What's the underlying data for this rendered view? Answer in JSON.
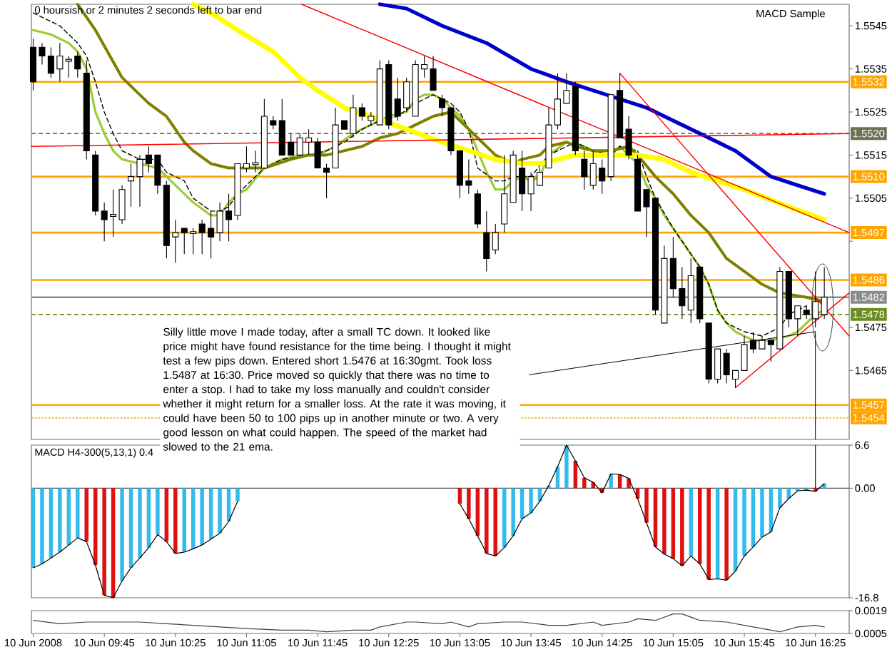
{
  "chart_data": [
    {
      "type": "candlestick",
      "x": [
        "2008-06-10T09:05",
        "2008-06-10T09:10",
        "2008-06-10T09:15",
        "2008-06-10T09:20",
        "2008-06-10T09:25",
        "2008-06-10T09:30",
        "2008-06-10T09:35",
        "2008-06-10T09:40",
        "2008-06-10T09:45",
        "2008-06-10T09:50",
        "2008-06-10T09:55",
        "2008-06-10T10:00",
        "2008-06-10T10:05",
        "2008-06-10T10:10",
        "2008-06-10T10:15",
        "2008-06-10T10:20",
        "2008-06-10T10:25",
        "2008-06-10T10:30",
        "2008-06-10T10:35",
        "2008-06-10T10:40",
        "2008-06-10T10:45",
        "2008-06-10T10:50",
        "2008-06-10T10:55",
        "2008-06-10T11:00",
        "2008-06-10T11:05",
        "2008-06-10T11:10",
        "2008-06-10T11:15",
        "2008-06-10T11:20",
        "2008-06-10T11:25",
        "2008-06-10T11:30",
        "2008-06-10T11:35",
        "2008-06-10T11:40",
        "2008-06-10T11:45",
        "2008-06-10T11:50",
        "2008-06-10T11:55",
        "2008-06-10T12:00",
        "2008-06-10T12:05",
        "2008-06-10T12:10",
        "2008-06-10T12:15",
        "2008-06-10T12:20",
        "2008-06-10T12:25",
        "2008-06-10T12:30",
        "2008-06-10T12:35",
        "2008-06-10T12:40",
        "2008-06-10T12:45",
        "2008-06-10T12:50",
        "2008-06-10T12:55",
        "2008-06-10T13:00",
        "2008-06-10T13:05",
        "2008-06-10T13:10",
        "2008-06-10T13:15",
        "2008-06-10T13:20",
        "2008-06-10T13:25",
        "2008-06-10T13:30",
        "2008-06-10T13:35",
        "2008-06-10T13:40",
        "2008-06-10T13:45",
        "2008-06-10T13:50",
        "2008-06-10T13:55",
        "2008-06-10T14:00",
        "2008-06-10T14:05",
        "2008-06-10T14:10",
        "2008-06-10T14:15",
        "2008-06-10T14:20",
        "2008-06-10T14:25",
        "2008-06-10T14:30",
        "2008-06-10T14:35",
        "2008-06-10T14:40",
        "2008-06-10T14:45",
        "2008-06-10T14:50",
        "2008-06-10T14:55",
        "2008-06-10T15:00",
        "2008-06-10T15:05",
        "2008-06-10T15:10",
        "2008-06-10T15:15",
        "2008-06-10T15:20",
        "2008-06-10T15:25",
        "2008-06-10T15:30",
        "2008-06-10T15:35",
        "2008-06-10T15:40",
        "2008-06-10T15:45",
        "2008-06-10T15:50",
        "2008-06-10T15:55",
        "2008-06-10T16:00",
        "2008-06-10T16:05",
        "2008-06-10T16:10",
        "2008-06-10T16:15",
        "2008-06-10T16:20",
        "2008-06-10T16:25",
        "2008-06-10T16:30"
      ],
      "ohlc": [
        [
          1.554,
          1.5542,
          1.553,
          1.5532
        ],
        [
          1.554,
          1.5541,
          1.5536,
          1.5538
        ],
        [
          1.5538,
          1.554,
          1.5533,
          1.5534
        ],
        [
          1.5535,
          1.5541,
          1.5532,
          1.5538
        ],
        [
          1.5537,
          1.5538,
          1.5533,
          1.5537
        ],
        [
          1.5538,
          1.5539,
          1.5533,
          1.5535
        ],
        [
          1.5534,
          1.5537,
          1.5514,
          1.5516
        ],
        [
          1.5515,
          1.5516,
          1.5501,
          1.5502
        ],
        [
          1.5502,
          1.5504,
          1.5495,
          1.55
        ],
        [
          1.5501,
          1.5507,
          1.5496,
          1.5501
        ],
        [
          1.55,
          1.5508,
          1.5499,
          1.5507
        ],
        [
          1.5509,
          1.5513,
          1.5503,
          1.551
        ],
        [
          1.551,
          1.5515,
          1.5503,
          1.5514
        ],
        [
          1.5515,
          1.5517,
          1.5511,
          1.5513
        ],
        [
          1.5515,
          1.5515,
          1.5506,
          1.5508
        ],
        [
          1.5508,
          1.5509,
          1.5491,
          1.5494
        ],
        [
          1.5496,
          1.55,
          1.549,
          1.5497
        ],
        [
          1.5498,
          1.5498,
          1.5492,
          1.5497
        ],
        [
          1.5497,
          1.5498,
          1.5492,
          1.5497
        ],
        [
          1.5499,
          1.55,
          1.5492,
          1.5497
        ],
        [
          1.5498,
          1.5502,
          1.5491,
          1.5496
        ],
        [
          1.5497,
          1.5504,
          1.5495,
          1.5502
        ],
        [
          1.5502,
          1.5506,
          1.5495,
          1.55
        ],
        [
          1.5501,
          1.5513,
          1.55,
          1.5513
        ],
        [
          1.5512,
          1.5517,
          1.5511,
          1.5513
        ],
        [
          1.5513,
          1.5516,
          1.5511,
          1.5513
        ],
        [
          1.5512,
          1.5528,
          1.5512,
          1.5524
        ],
        [
          1.5523,
          1.5524,
          1.5521,
          1.5522
        ],
        [
          1.5523,
          1.5528,
          1.5515,
          1.5515
        ],
        [
          1.5518,
          1.552,
          1.5515,
          1.5515
        ],
        [
          1.5515,
          1.552,
          1.5515,
          1.5519
        ],
        [
          1.5518,
          1.5521,
          1.5515,
          1.5519
        ],
        [
          1.5518,
          1.5519,
          1.5512,
          1.5512
        ],
        [
          1.5512,
          1.5513,
          1.5505,
          1.5511
        ],
        [
          1.5512,
          1.5526,
          1.5512,
          1.5522
        ],
        [
          1.5523,
          1.5523,
          1.5521,
          1.5521
        ],
        [
          1.552,
          1.5529,
          1.5519,
          1.5526
        ],
        [
          1.5526,
          1.5527,
          1.5523,
          1.5524
        ],
        [
          1.5523,
          1.5525,
          1.5522,
          1.5524
        ],
        [
          1.5522,
          1.5537,
          1.5522,
          1.5535
        ],
        [
          1.5536,
          1.5537,
          1.5521,
          1.5522
        ],
        [
          1.5528,
          1.5533,
          1.5523,
          1.5524
        ],
        [
          1.5526,
          1.5533,
          1.5525,
          1.5532
        ],
        [
          1.5524,
          1.5537,
          1.5524,
          1.5536
        ],
        [
          1.5535,
          1.5538,
          1.5533,
          1.5536
        ],
        [
          1.5535,
          1.5538,
          1.553,
          1.553
        ],
        [
          1.5528,
          1.5529,
          1.5524,
          1.5526
        ],
        [
          1.5526,
          1.5526,
          1.5515,
          1.5516
        ],
        [
          1.5516,
          1.5516,
          1.5505,
          1.5508
        ],
        [
          1.5509,
          1.5514,
          1.5506,
          1.5508
        ],
        [
          1.5506,
          1.5507,
          1.5498,
          1.5499
        ],
        [
          1.5497,
          1.5502,
          1.5488,
          1.5491
        ],
        [
          1.5493,
          1.5499,
          1.5492,
          1.5497
        ],
        [
          1.5499,
          1.5515,
          1.5497,
          1.5506
        ],
        [
          1.5504,
          1.5516,
          1.5504,
          1.5515
        ],
        [
          1.5512,
          1.5516,
          1.5502,
          1.5506
        ],
        [
          1.5506,
          1.5511,
          1.5502,
          1.551
        ],
        [
          1.5508,
          1.5512,
          1.5508,
          1.5511
        ],
        [
          1.5512,
          1.5526,
          1.5512,
          1.5522
        ],
        [
          1.5522,
          1.5534,
          1.5521,
          1.5528
        ],
        [
          1.5527,
          1.5534,
          1.5527,
          1.553
        ],
        [
          1.5531,
          1.5532,
          1.5515,
          1.5516
        ],
        [
          1.5514,
          1.5516,
          1.5507,
          1.551
        ],
        [
          1.5508,
          1.5516,
          1.5507,
          1.5513
        ],
        [
          1.5512,
          1.5514,
          1.5506,
          1.5509
        ],
        [
          1.551,
          1.5529,
          1.5509,
          1.5529
        ],
        [
          1.553,
          1.5534,
          1.5519,
          1.5519
        ],
        [
          1.5521,
          1.5524,
          1.5514,
          1.5515
        ],
        [
          1.5514,
          1.5515,
          1.5502,
          1.5502
        ],
        [
          1.5507,
          1.5507,
          1.5496,
          1.5503
        ],
        [
          1.5505,
          1.5505,
          1.5478,
          1.5479
        ],
        [
          1.5476,
          1.5494,
          1.5476,
          1.5491
        ],
        [
          1.5491,
          1.5496,
          1.5482,
          1.5484
        ],
        [
          1.5484,
          1.5489,
          1.5477,
          1.548
        ],
        [
          1.5479,
          1.5491,
          1.5476,
          1.5487
        ],
        [
          1.5489,
          1.5489,
          1.5476,
          1.5477
        ],
        [
          1.5476,
          1.5476,
          1.5462,
          1.5463
        ],
        [
          1.5463,
          1.547,
          1.5462,
          1.547
        ],
        [
          1.5469,
          1.547,
          1.5462,
          1.5464
        ],
        [
          1.5463,
          1.5465,
          1.5461,
          1.5465
        ],
        [
          1.5465,
          1.5473,
          1.5465,
          1.5471
        ],
        [
          1.5472,
          1.5474,
          1.5469,
          1.547
        ],
        [
          1.547,
          1.5473,
          1.547,
          1.5472
        ],
        [
          1.5472,
          1.5472,
          1.5467,
          1.5471
        ],
        [
          1.547,
          1.5489,
          1.547,
          1.5488
        ],
        [
          1.5488,
          1.5488,
          1.5475,
          1.5477
        ],
        [
          1.5477,
          1.548,
          1.5473,
          1.548
        ],
        [
          1.5479,
          1.548,
          1.5477,
          1.5478
        ],
        [
          1.5477,
          1.5488,
          1.5475,
          1.5481
        ],
        [
          1.5478,
          1.5489,
          1.5477,
          1.5482
        ]
      ],
      "series": [
        {
          "type": "line",
          "color": "#9acd32",
          "x": [
            "2008-06-10T09:05",
            "2008-06-10T09:15",
            "2008-06-10T09:25",
            "2008-06-10T09:30",
            "2008-06-10T09:35",
            "2008-06-10T09:40",
            "2008-06-10T09:45",
            "2008-06-10T09:50",
            "2008-06-10T09:55",
            "2008-06-10T10:05",
            "2008-06-10T10:15",
            "2008-06-10T10:25",
            "2008-06-10T10:35",
            "2008-06-10T10:45",
            "2008-06-10T10:50",
            "2008-06-10T10:55",
            "2008-06-10T11:00",
            "2008-06-10T11:05",
            "2008-06-10T11:15",
            "2008-06-10T11:25",
            "2008-06-10T11:35",
            "2008-06-10T11:45",
            "2008-06-10T11:55",
            "2008-06-10T12:05",
            "2008-06-10T12:15",
            "2008-06-10T12:25",
            "2008-06-10T12:35",
            "2008-06-10T12:40",
            "2008-06-10T12:45",
            "2008-06-10T12:50",
            "2008-06-10T12:55",
            "2008-06-10T13:00",
            "2008-06-10T13:05",
            "2008-06-10T13:10",
            "2008-06-10T13:15",
            "2008-06-10T13:20",
            "2008-06-10T13:25",
            "2008-06-10T13:30",
            "2008-06-10T13:35",
            "2008-06-10T13:40",
            "2008-06-10T13:45",
            "2008-06-10T13:50",
            "2008-06-10T13:55",
            "2008-06-10T14:05",
            "2008-06-10T14:15",
            "2008-06-10T14:20",
            "2008-06-10T14:30",
            "2008-06-10T14:35",
            "2008-06-10T14:45",
            "2008-06-10T14:50",
            "2008-06-10T14:55",
            "2008-06-10T15:00",
            "2008-06-10T15:05",
            "2008-06-10T15:10",
            "2008-06-10T15:15",
            "2008-06-10T15:20",
            "2008-06-10T15:25",
            "2008-06-10T15:30",
            "2008-06-10T15:35",
            "2008-06-10T15:40",
            "2008-06-10T15:50",
            "2008-06-10T16:00",
            "2008-06-10T16:10",
            "2008-06-10T16:15",
            "2008-06-10T16:20",
            "2008-06-10T16:25",
            "2008-06-10T16:30"
          ],
          "values": [
            1.5544,
            1.5543,
            1.5541,
            1.5539,
            1.5535,
            1.5525,
            1.552,
            1.5516,
            1.5514,
            1.5513,
            1.5512,
            1.5508,
            1.5504,
            1.5501,
            1.5501,
            1.5504,
            1.5506,
            1.5507,
            1.5512,
            1.5514,
            1.5515,
            1.5515,
            1.5517,
            1.552,
            1.5522,
            1.5524,
            1.5525,
            1.5528,
            1.5529,
            1.5529,
            1.5528,
            1.5526,
            1.5524,
            1.5521,
            1.5516,
            1.5511,
            1.5507,
            1.5507,
            1.5509,
            1.551,
            1.5509,
            1.551,
            1.5515,
            1.5518,
            1.5517,
            1.5516,
            1.5515,
            1.5517,
            1.5513,
            1.5508,
            1.5505,
            1.5501,
            1.5498,
            1.5495,
            1.5492,
            1.5489,
            1.5485,
            1.5479,
            1.5476,
            1.5474,
            1.5472,
            1.5472,
            1.5473,
            1.5474,
            1.5476,
            1.5478,
            1.5479
          ]
        },
        {
          "type": "line",
          "color": "#000000",
          "line_style": "dashed",
          "x": [
            "2008-06-10T09:05",
            "2008-06-10T09:20",
            "2008-06-10T09:30",
            "2008-06-10T09:35",
            "2008-06-10T09:40",
            "2008-06-10T09:45",
            "2008-06-10T09:50",
            "2008-06-10T09:55",
            "2008-06-10T10:05",
            "2008-06-10T10:15",
            "2008-06-10T10:20",
            "2008-06-10T10:30",
            "2008-06-10T10:35",
            "2008-06-10T10:45",
            "2008-06-10T10:50",
            "2008-06-10T10:55",
            "2008-06-10T11:00",
            "2008-06-10T11:05",
            "2008-06-10T11:15",
            "2008-06-10T11:25",
            "2008-06-10T11:40",
            "2008-06-10T11:50",
            "2008-06-10T12:00",
            "2008-06-10T12:10",
            "2008-06-10T12:20",
            "2008-06-10T12:30",
            "2008-06-10T12:40",
            "2008-06-10T12:45",
            "2008-06-10T12:50",
            "2008-06-10T13:00",
            "2008-06-10T13:05",
            "2008-06-10T13:10",
            "2008-06-10T13:15",
            "2008-06-10T13:25",
            "2008-06-10T13:30",
            "2008-06-10T13:35",
            "2008-06-10T13:45",
            "2008-06-10T13:55",
            "2008-06-10T14:05",
            "2008-06-10T14:10",
            "2008-06-10T14:20",
            "2008-06-10T14:30",
            "2008-06-10T14:35",
            "2008-06-10T14:45",
            "2008-06-10T14:50",
            "2008-06-10T14:55",
            "2008-06-10T15:05",
            "2008-06-10T15:10",
            "2008-06-10T15:20",
            "2008-06-10T15:25",
            "2008-06-10T15:30",
            "2008-06-10T15:35",
            "2008-06-10T15:45",
            "2008-06-10T15:55",
            "2008-06-10T16:05",
            "2008-06-10T16:10",
            "2008-06-10T16:20"
          ],
          "values": [
            1.5548,
            1.5545,
            1.5541,
            1.5538,
            1.5532,
            1.5525,
            1.552,
            1.5516,
            1.5514,
            1.5514,
            1.5511,
            1.5509,
            1.5505,
            1.5502,
            1.5502,
            1.5503,
            1.5506,
            1.5508,
            1.5512,
            1.5514,
            1.5515,
            1.5516,
            1.5518,
            1.5521,
            1.5523,
            1.5524,
            1.5527,
            1.5528,
            1.5529,
            1.5527,
            1.5525,
            1.5521,
            1.5512,
            1.5509,
            1.5509,
            1.551,
            1.551,
            1.5515,
            1.5517,
            1.5518,
            1.5516,
            1.5515,
            1.5517,
            1.5516,
            1.551,
            1.5505,
            1.5498,
            1.5495,
            1.5489,
            1.5485,
            1.5479,
            1.5476,
            1.5474,
            1.5473,
            1.5475,
            1.5478,
            1.548
          ]
        },
        {
          "type": "line",
          "color": "#808000",
          "x": [
            "2008-06-10T09:30",
            "2008-06-10T09:40",
            "2008-06-10T09:55",
            "2008-06-10T10:05",
            "2008-06-10T10:10",
            "2008-06-10T10:20",
            "2008-06-10T10:30",
            "2008-06-10T10:35",
            "2008-06-10T10:45",
            "2008-06-10T10:55",
            "2008-06-10T11:05",
            "2008-06-10T11:15",
            "2008-06-10T11:30",
            "2008-06-10T11:40",
            "2008-06-10T11:50",
            "2008-06-10T12:00",
            "2008-06-10T12:10",
            "2008-06-10T12:20",
            "2008-06-10T12:30",
            "2008-06-10T12:40",
            "2008-06-10T12:50",
            "2008-06-10T13:00",
            "2008-06-10T13:05",
            "2008-06-10T13:15",
            "2008-06-10T13:25",
            "2008-06-10T13:35",
            "2008-06-10T13:40",
            "2008-06-10T13:50",
            "2008-06-10T13:55",
            "2008-06-10T14:05",
            "2008-06-10T14:10",
            "2008-06-10T14:20",
            "2008-06-10T14:30",
            "2008-06-10T14:40",
            "2008-06-10T14:45",
            "2008-06-10T14:55",
            "2008-06-10T15:05",
            "2008-06-10T15:15",
            "2008-06-10T15:25",
            "2008-06-10T15:35",
            "2008-06-10T15:45",
            "2008-06-10T15:55",
            "2008-06-10T16:05",
            "2008-06-10T16:20",
            "2008-06-10T16:30"
          ],
          "values": [
            1.555,
            1.5544,
            1.5533,
            1.5529,
            1.5527,
            1.5524,
            1.5518,
            1.5516,
            1.5513,
            1.5512,
            1.5512,
            1.5512,
            1.5514,
            1.5515,
            1.5515,
            1.5516,
            1.5517,
            1.5519,
            1.552,
            1.5522,
            1.5524,
            1.5525,
            1.5523,
            1.5519,
            1.5515,
            1.5513,
            1.5514,
            1.5515,
            1.5517,
            1.5518,
            1.5517,
            1.5516,
            1.5516,
            1.5517,
            1.5515,
            1.551,
            1.5506,
            1.5501,
            1.5497,
            1.5491,
            1.5488,
            1.5485,
            1.5483,
            1.5482,
            1.5481
          ]
        },
        {
          "type": "line",
          "color": "#ffff00",
          "x": [
            "2008-06-10T10:35",
            "2008-06-10T10:45",
            "2008-06-10T11:00",
            "2008-06-10T11:20",
            "2008-06-10T11:35",
            "2008-06-10T11:45",
            "2008-06-10T12:00",
            "2008-06-10T12:15",
            "2008-06-10T12:35",
            "2008-06-10T12:55",
            "2008-06-10T13:10",
            "2008-06-10T13:25",
            "2008-06-10T13:40",
            "2008-06-10T13:50",
            "2008-06-10T14:10",
            "2008-06-10T14:25",
            "2008-06-10T14:45",
            "2008-06-10T15:00",
            "2008-06-10T15:15",
            "2008-06-10T15:45",
            "2008-06-10T16:10",
            "2008-06-10T16:30"
          ],
          "values": [
            1.555,
            1.5548,
            1.5544,
            1.5539,
            1.5533,
            1.553,
            1.5526,
            1.5524,
            1.5521,
            1.5518,
            1.5516,
            1.5514,
            1.5513,
            1.5513,
            1.5515,
            1.5515,
            1.5515,
            1.5514,
            1.5511,
            1.5507,
            1.5503,
            1.55
          ]
        },
        {
          "type": "line",
          "color": "#0000cd",
          "x": [
            "2008-06-10T12:20",
            "2008-06-10T12:35",
            "2008-06-10T12:55",
            "2008-06-10T13:20",
            "2008-06-10T13:45",
            "2008-06-10T14:05",
            "2008-06-10T14:35",
            "2008-06-10T14:50",
            "2008-06-10T15:05",
            "2008-06-10T15:20",
            "2008-06-10T15:40",
            "2008-06-10T16:00",
            "2008-06-10T16:15",
            "2008-06-10T16:30"
          ],
          "values": [
            1.555,
            1.5549,
            1.5545,
            1.5541,
            1.5535,
            1.5532,
            1.5528,
            1.5526,
            1.5523,
            1.552,
            1.5516,
            1.551,
            1.5508,
            1.5506
          ]
        },
        {
          "type": "line",
          "color": "#ff0000",
          "x": [
            "2008-06-10T09:04",
            "2008-06-10T16:44"
          ],
          "values": [
            1.5517,
            1.552
          ]
        },
        {
          "type": "line",
          "color": "#ff0000",
          "x": [
            "2008-06-10T11:36",
            "2008-06-10T16:44"
          ],
          "values": [
            1.555,
            1.5497
          ]
        },
        {
          "type": "line",
          "color": "#ff0000",
          "x": [
            "2008-06-10T14:35",
            "2008-06-10T16:44"
          ],
          "values": [
            1.5534,
            1.5473
          ]
        },
        {
          "type": "line",
          "color": "#ff0000",
          "x": [
            "2008-06-10T15:40",
            "2008-06-10T16:44"
          ],
          "values": [
            1.5461,
            1.5483
          ]
        },
        {
          "type": "line",
          "color": "#000000",
          "x": [
            "2008-06-10T13:44",
            "2008-06-10T16:25"
          ],
          "values": [
            1.5464,
            1.5474
          ]
        },
        {
          "type": "line",
          "color": "#000000",
          "x": [
            "2008-06-10T16:25",
            "2008-06-10T16:25"
          ],
          "values": [
            1.5474,
            1.5449
          ]
        }
      ],
      "xlim": [
        "2008-06-10T09:04",
        "2008-06-10T16:44"
      ],
      "ylim": [
        1.5449,
        1.555
      ],
      "yticks": [
        1.5545,
        1.5535,
        1.5525,
        1.5515,
        1.5505,
        {
          "value": 1.5495,
          "label": null
        },
        1.5475,
        1.5465
      ],
      "tick_labels": "y",
      "ref_lines": [
        {
          "axis": "y",
          "value": 1.5532,
          "label": "1.5532",
          "color": "#ffa500"
        },
        {
          "axis": "y",
          "value": 1.552,
          "label": "1.5520",
          "color": "#6b7357",
          "line_style": "dashed"
        },
        {
          "axis": "y",
          "value": 1.551,
          "label": "1.5510",
          "color": "#ffa500"
        },
        {
          "axis": "y",
          "value": 1.5497,
          "label": "1.5497",
          "color": "#ffa500"
        },
        {
          "axis": "y",
          "value": 1.5486,
          "label": "1.5486",
          "color": "#ffa500"
        },
        {
          "axis": "y",
          "value": 1.5482,
          "label": "1.5482",
          "color": "#8c8c8c"
        },
        {
          "axis": "y",
          "value": 1.5478,
          "label": "1.5478",
          "color": "#6b8e23",
          "line_style": "dashed"
        },
        {
          "axis": "y",
          "value": 1.5457,
          "label": "1.5457",
          "color": "#ffa500"
        },
        {
          "axis": "y",
          "value": 1.5454,
          "label": "1.5454",
          "color": "#ffa500",
          "line_style": "dotted"
        }
      ],
      "annotations": [
        "0 hoursish or 2 minutes 2 seconds left to bar end",
        "MACD Sample",
        "Silly little move I made today, after a small TC down. It looked like price might have found resistance for the time being. I thought it might test a few pips down. Entered short 1.5476 at 16:30gmt. Took loss 1.5487 at 16:30. Price moved so quickly that there was no time to enter a stop. I had to take my loss manually and couldn't consider whether it might return for a smaller loss. At the rate it was moving, it could have been 50 to 100 pips up in another minute or two. A very good lesson on what could happen. The speed of the market had slowed to the 21 ema."
      ]
    },
    {
      "type": "bar",
      "title": "MACD H4-300(5,13,1) 0.4",
      "x": [
        "2008-06-10T09:05",
        "2008-06-10T09:10",
        "2008-06-10T09:15",
        "2008-06-10T09:20",
        "2008-06-10T09:25",
        "2008-06-10T09:30",
        "2008-06-10T09:35",
        "2008-06-10T09:40",
        "2008-06-10T09:45",
        "2008-06-10T09:50",
        "2008-06-10T09:55",
        "2008-06-10T10:00",
        "2008-06-10T10:05",
        "2008-06-10T10:10",
        "2008-06-10T10:15",
        "2008-06-10T10:20",
        "2008-06-10T10:25",
        "2008-06-10T10:30",
        "2008-06-10T10:35",
        "2008-06-10T10:40",
        "2008-06-10T10:45",
        "2008-06-10T10:50",
        "2008-06-10T10:55",
        "2008-06-10T11:00",
        "2008-06-10T11:05",
        "2008-06-10T11:10",
        "2008-06-10T11:15",
        "2008-06-10T11:20",
        "2008-06-10T11:25",
        "2008-06-10T11:30",
        "2008-06-10T11:35",
        "2008-06-10T11:40",
        "2008-06-10T11:45",
        "2008-06-10T11:50",
        "2008-06-10T11:55",
        "2008-06-10T12:00",
        "2008-06-10T12:05",
        "2008-06-10T12:10",
        "2008-06-10T12:15",
        "2008-06-10T12:20",
        "2008-06-10T12:25",
        "2008-06-10T12:30",
        "2008-06-10T12:35",
        "2008-06-10T12:40",
        "2008-06-10T12:45",
        "2008-06-10T12:50",
        "2008-06-10T12:55",
        "2008-06-10T13:00",
        "2008-06-10T13:05",
        "2008-06-10T13:10",
        "2008-06-10T13:15",
        "2008-06-10T13:20",
        "2008-06-10T13:25",
        "2008-06-10T13:30",
        "2008-06-10T13:35",
        "2008-06-10T13:40",
        "2008-06-10T13:45",
        "2008-06-10T13:50",
        "2008-06-10T13:55",
        "2008-06-10T14:00",
        "2008-06-10T14:05",
        "2008-06-10T14:10",
        "2008-06-10T14:15",
        "2008-06-10T14:20",
        "2008-06-10T14:25",
        "2008-06-10T14:30",
        "2008-06-10T14:35",
        "2008-06-10T14:40",
        "2008-06-10T14:45",
        "2008-06-10T14:50",
        "2008-06-10T14:55",
        "2008-06-10T15:00",
        "2008-06-10T15:05",
        "2008-06-10T15:10",
        "2008-06-10T15:15",
        "2008-06-10T15:20",
        "2008-06-10T15:25",
        "2008-06-10T15:30",
        "2008-06-10T15:35",
        "2008-06-10T15:40",
        "2008-06-10T15:45",
        "2008-06-10T15:50",
        "2008-06-10T15:55",
        "2008-06-10T16:00",
        "2008-06-10T16:05",
        "2008-06-10T16:10",
        "2008-06-10T16:15",
        "2008-06-10T16:20",
        "2008-06-10T16:25",
        "2008-06-10T16:30"
      ],
      "series": [
        {
          "type": "bar",
          "values": [
            -12.2,
            -11.6,
            -10.7,
            -9.8,
            -8.7,
            -7.6,
            -8.2,
            -11.8,
            -16.4,
            -16.8,
            -14.2,
            -12.2,
            -10.7,
            -9.1,
            -7.1,
            -8.2,
            -10.0,
            -9.8,
            -9.3,
            -8.7,
            -7.8,
            -6.9,
            -5.1,
            -2.0,
            null,
            null,
            null,
            null,
            null,
            null,
            null,
            null,
            null,
            null,
            null,
            null,
            null,
            null,
            null,
            null,
            null,
            null,
            null,
            null,
            null,
            null,
            null,
            null,
            -2.4,
            -4.7,
            -7.3,
            -10.0,
            -10.4,
            -9.1,
            -7.3,
            -4.7,
            -3.8,
            -2.0,
            0.4,
            3.3,
            6.6,
            4.2,
            1.6,
            0.9,
            -0.7,
            2.2,
            2.1,
            1.5,
            -1.6,
            -5.3,
            -9.0,
            -10.1,
            -10.8,
            -11.9,
            -10.4,
            -11.6,
            -14.0,
            -13.9,
            -14.1,
            -12.7,
            -10.4,
            -9.0,
            -7.5,
            -6.7,
            -3.0,
            -1.6,
            -0.4,
            -0.3,
            -0.5,
            0.7
          ],
          "colors": [
            "#33bbee",
            "#33bbee",
            "#33bbee",
            "#33bbee",
            "#33bbee",
            "#33bbee",
            "#e01010",
            "#e01010",
            "#e01010",
            "#e01010",
            "#33bbee",
            "#33bbee",
            "#33bbee",
            "#33bbee",
            "#33bbee",
            "#e01010",
            "#e01010",
            "#33bbee",
            "#33bbee",
            "#33bbee",
            "#33bbee",
            "#33bbee",
            "#33bbee",
            "#33bbee",
            null,
            null,
            null,
            null,
            null,
            null,
            null,
            null,
            null,
            null,
            null,
            null,
            null,
            null,
            null,
            null,
            null,
            null,
            null,
            null,
            null,
            null,
            null,
            null,
            "#e01010",
            "#e01010",
            "#e01010",
            "#e01010",
            "#e01010",
            "#33bbee",
            "#33bbee",
            "#33bbee",
            "#33bbee",
            "#33bbee",
            "#33bbee",
            "#33bbee",
            "#33bbee",
            "#e01010",
            "#e01010",
            "#e01010",
            "#e01010",
            "#33bbee",
            "#e01010",
            "#e01010",
            "#e01010",
            "#e01010",
            "#e01010",
            "#e01010",
            "#e01010",
            "#e01010",
            "#33bbee",
            "#e01010",
            "#e01010",
            "#33bbee",
            "#e01010",
            "#33bbee",
            "#33bbee",
            "#33bbee",
            "#33bbee",
            "#33bbee",
            "#33bbee",
            "#33bbee",
            "#33bbee",
            "#33bbee",
            "#e01010",
            "#33bbee"
          ]
        },
        {
          "type": "line",
          "color": "#000000",
          "values": [
            -12.2,
            -11.6,
            -10.7,
            -9.8,
            -8.7,
            -7.6,
            -8.2,
            -11.8,
            -16.4,
            -16.8,
            -14.2,
            -12.2,
            -10.7,
            -9.1,
            -7.1,
            -8.2,
            -10.0,
            -9.8,
            -9.3,
            -8.7,
            -7.8,
            -6.9,
            -5.1,
            -2.0,
            null,
            null,
            null,
            null,
            null,
            null,
            null,
            null,
            null,
            null,
            null,
            null,
            null,
            null,
            null,
            null,
            null,
            null,
            null,
            null,
            null,
            null,
            null,
            null,
            -2.4,
            -4.7,
            -7.3,
            -10.0,
            -10.4,
            -9.1,
            -7.3,
            -4.7,
            -3.8,
            -2.0,
            0.4,
            3.3,
            6.6,
            4.2,
            1.6,
            0.9,
            -0.7,
            2.2,
            2.1,
            1.5,
            -1.6,
            -5.3,
            -9.0,
            -10.1,
            -10.8,
            -11.9,
            -10.4,
            -11.6,
            -14.0,
            -13.9,
            -14.1,
            -12.7,
            -10.4,
            -9.0,
            -7.5,
            -6.7,
            -3.0,
            -1.6,
            -0.4,
            -0.3,
            -0.5,
            0.7
          ]
        },
        {
          "type": "line",
          "color": "#1a1a1a",
          "x": [
            "2008-06-10T16:25",
            "2008-06-10T16:25"
          ],
          "values": [
            6.6,
            0
          ]
        }
      ],
      "xlim": [
        "2008-06-10T09:04",
        "2008-06-10T16:44"
      ],
      "ylim": [
        -16.8,
        6.6
      ],
      "yticks": [
        6.6,
        {
          "value": 0,
          "label": "0.00"
        },
        -16.8
      ],
      "tick_labels": "y",
      "ref_lines": [
        {
          "axis": "y",
          "value": 0,
          "color": "#505050"
        }
      ]
    },
    {
      "type": "line",
      "color": "#404040",
      "x": [
        "2008-06-10T09:05",
        "2008-06-10T09:20",
        "2008-06-10T09:35",
        "2008-06-10T09:50",
        "2008-06-10T10:05",
        "2008-06-10T10:20",
        "2008-06-10T10:35",
        "2008-06-10T10:50",
        "2008-06-10T11:05",
        "2008-06-10T11:25",
        "2008-06-10T11:40",
        "2008-06-10T11:50",
        "2008-06-10T12:05",
        "2008-06-10T12:15",
        "2008-06-10T12:20",
        "2008-06-10T12:35",
        "2008-06-10T12:40",
        "2008-06-10T12:55",
        "2008-06-10T13:00",
        "2008-06-10T13:10",
        "2008-06-10T13:15",
        "2008-06-10T13:30",
        "2008-06-10T13:40",
        "2008-06-10T13:55",
        "2008-06-10T14:05",
        "2008-06-10T14:20",
        "2008-06-10T14:25",
        "2008-06-10T14:40",
        "2008-06-10T14:45",
        "2008-06-10T14:55",
        "2008-06-10T15:05",
        "2008-06-10T15:10",
        "2008-06-10T15:15",
        "2008-06-10T15:20",
        "2008-06-10T15:35",
        "2008-06-10T15:45",
        "2008-06-10T16:00",
        "2008-06-10T16:05",
        "2008-06-10T16:15",
        "2008-06-10T16:25",
        "2008-06-10T16:30"
      ],
      "values": [
        0.0013,
        0.0011,
        0.0012,
        0.0012,
        0.0012,
        0.0011,
        0.001,
        0.0009,
        0.0008,
        0.0007,
        0.0007,
        0.0006,
        0.0007,
        0.0007,
        0.0009,
        0.0012,
        0.0012,
        0.0011,
        0.0012,
        0.0009,
        0.0011,
        0.0012,
        0.0012,
        0.001,
        0.001,
        0.0012,
        0.001,
        0.0012,
        0.0014,
        0.0013,
        0.0017,
        0.0017,
        0.0015,
        0.0013,
        0.0012,
        0.001,
        0.0007,
        0.0006,
        0.0009,
        0.001,
        0.0009
      ],
      "xlim": [
        "2008-06-10T09:04",
        "2008-06-10T16:44"
      ],
      "ylim": [
        0.0005,
        0.0019
      ],
      "yticks": [
        0.0019,
        0.0005
      ],
      "xticks": [
        {
          "value": "2008-06-10T09:05",
          "label": "10 Jun 2008"
        },
        {
          "value": "2008-06-10T09:45",
          "label": "10 Jun 09:45"
        },
        {
          "value": "2008-06-10T10:25",
          "label": "10 Jun 10:25"
        },
        {
          "value": "2008-06-10T11:05",
          "label": "10 Jun 11:05"
        },
        {
          "value": "2008-06-10T11:45",
          "label": "10 Jun 11:45"
        },
        {
          "value": "2008-06-10T12:25",
          "label": "10 Jun 12:25"
        },
        {
          "value": "2008-06-10T13:05",
          "label": "10 Jun 13:05"
        },
        {
          "value": "2008-06-10T13:45",
          "label": "10 Jun 13:45"
        },
        {
          "value": "2008-06-10T14:25",
          "label": "10 Jun 14:25"
        },
        {
          "value": "2008-06-10T15:05",
          "label": "10 Jun 15:05"
        },
        {
          "value": "2008-06-10T15:45",
          "label": "10 Jun 15:45"
        },
        {
          "value": "2008-06-10T16:25",
          "label": "10 Jun 16:25"
        }
      ]
    }
  ]
}
